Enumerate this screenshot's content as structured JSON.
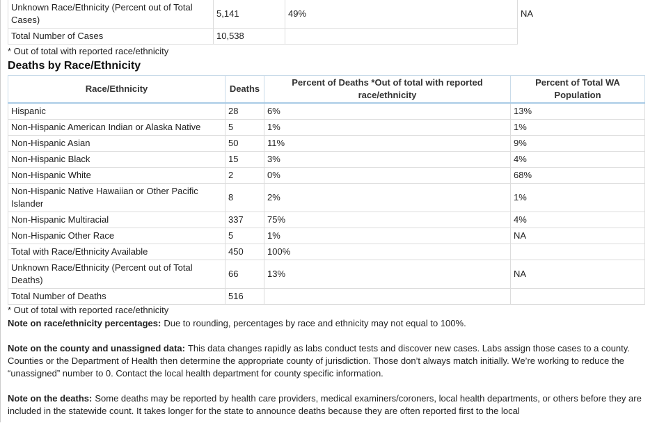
{
  "cases_table": {
    "rows": [
      [
        "Unknown Race/Ethnicity (Percent out of Total Cases)",
        "5,141",
        "49%",
        null,
        "NA"
      ],
      [
        "Total Number of Cases",
        "10,538",
        null,
        null,
        null
      ]
    ]
  },
  "cases_footnote": "* Out of total with reported race/ethnicity",
  "deaths_heading": "Deaths by Race/Ethnicity",
  "deaths_table": {
    "header": [
      "Race/Ethnicity",
      "Deaths",
      "Percent of Deaths *Out of total with reported race/ethnicity",
      "Percent of Total WA Population"
    ],
    "rows": [
      [
        "Hispanic",
        "28",
        "6%",
        "13%"
      ],
      [
        "Non-Hispanic American Indian or Alaska Native",
        "5",
        "1%",
        "1%"
      ],
      [
        "Non-Hispanic Asian",
        "50",
        "11%",
        "9%"
      ],
      [
        "Non-Hispanic Black",
        "15",
        "3%",
        "4%"
      ],
      [
        "Non-Hispanic White",
        "2",
        "0%",
        "68%"
      ],
      [
        "Non-Hispanic Native Hawaiian or Other Pacific Islander",
        "8",
        "2%",
        "1%"
      ],
      [
        "Non-Hispanic Multiracial",
        "337",
        "75%",
        "4%"
      ],
      [
        "Non-Hispanic Other Race",
        "5",
        "1%",
        "NA"
      ],
      [
        "Total with Race/Ethnicity Available",
        "450",
        "100%",
        null
      ],
      [
        "Unknown Race/Ethnicity (Percent out of Total Deaths)",
        "66",
        "13%",
        "NA"
      ],
      [
        "Total Number of Deaths",
        "516",
        null,
        null
      ]
    ]
  },
  "deaths_footnote": "* Out of total with reported race/ethnicity",
  "notes": [
    {
      "label": "Note on race/ethnicity percentages:",
      "text": "Due to rounding, percentages by race and ethnicity may not equal to 100%."
    },
    {
      "label": "Note on the county and unassigned data:",
      "text": "This data changes rapidly as labs conduct tests and discover new cases. Labs assign those cases to a county. Counties or the Department of Health then determine the appropriate county of jurisdiction. Those don’t always match initially. We’re working to reduce the “unassigned” number to 0. Contact the local health department for county specific information."
    },
    {
      "label": "Note on the deaths:",
      "text": "Some deaths may be reported by health care providers, medical examiners/coroners, local health departments, or others before they are included in the statewide count. It takes longer for the state to announce deaths because they are often reported first to the local"
    }
  ]
}
